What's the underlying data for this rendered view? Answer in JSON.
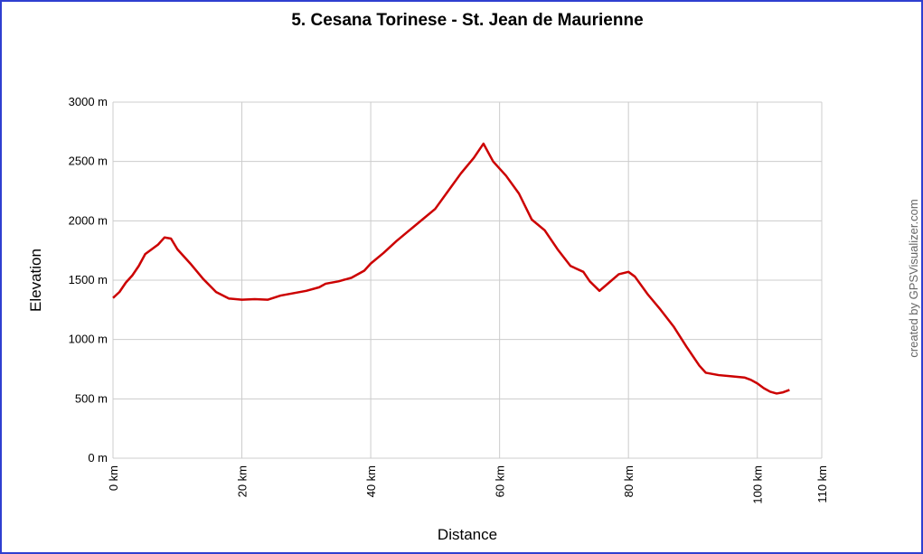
{
  "chart_data": {
    "type": "line",
    "title": "5. Cesana Torinese - St. Jean de Maurienne",
    "x_label": "Distance",
    "y_label": "Elevation",
    "credit": "created by GPSVisualizer.com",
    "x": [
      0,
      1,
      2,
      3,
      4,
      5,
      6,
      7,
      8,
      9,
      10,
      12,
      14,
      16,
      18,
      20,
      22,
      24,
      26,
      28,
      30,
      32,
      33,
      35,
      37,
      39,
      40,
      42,
      44,
      46,
      48,
      50,
      52,
      54,
      56,
      57.5,
      59,
      61,
      63,
      65,
      67,
      69,
      71,
      73,
      74,
      75.5,
      77,
      78.5,
      80,
      81,
      83,
      85,
      87,
      89,
      91,
      92,
      94,
      96,
      98,
      99,
      100,
      101,
      102,
      103,
      104,
      105
    ],
    "series": [
      {
        "name": "Elevation",
        "color": "#cc0000",
        "values": [
          1350,
          1400,
          1480,
          1540,
          1620,
          1720,
          1760,
          1800,
          1860,
          1850,
          1760,
          1640,
          1510,
          1400,
          1345,
          1335,
          1340,
          1335,
          1370,
          1390,
          1410,
          1440,
          1470,
          1490,
          1520,
          1580,
          1640,
          1730,
          1830,
          1920,
          2010,
          2100,
          2250,
          2400,
          2530,
          2650,
          2500,
          2380,
          2230,
          2010,
          1920,
          1760,
          1620,
          1570,
          1490,
          1410,
          1480,
          1550,
          1570,
          1530,
          1380,
          1250,
          1110,
          940,
          780,
          720,
          700,
          690,
          680,
          660,
          630,
          590,
          560,
          545,
          555,
          575
        ]
      }
    ],
    "xlim": [
      0,
      110
    ],
    "xticks": [
      {
        "value": 0,
        "label": "0 km"
      },
      {
        "value": 20,
        "label": "20 km"
      },
      {
        "value": 40,
        "label": "40 km"
      },
      {
        "value": 60,
        "label": "60 km"
      },
      {
        "value": 80,
        "label": "80 km"
      },
      {
        "value": 100,
        "label": "100 km"
      },
      {
        "value": 110,
        "label": "110 km"
      }
    ],
    "ylim": [
      0,
      3000
    ],
    "yticks": [
      {
        "value": 0,
        "label": "0 m"
      },
      {
        "value": 500,
        "label": "500 m"
      },
      {
        "value": 1000,
        "label": "1000 m"
      },
      {
        "value": 1500,
        "label": "1500 m"
      },
      {
        "value": 2000,
        "label": "2000 m"
      },
      {
        "value": 2500,
        "label": "2500 m"
      },
      {
        "value": 3000,
        "label": "3000 m"
      }
    ],
    "grid": true
  }
}
